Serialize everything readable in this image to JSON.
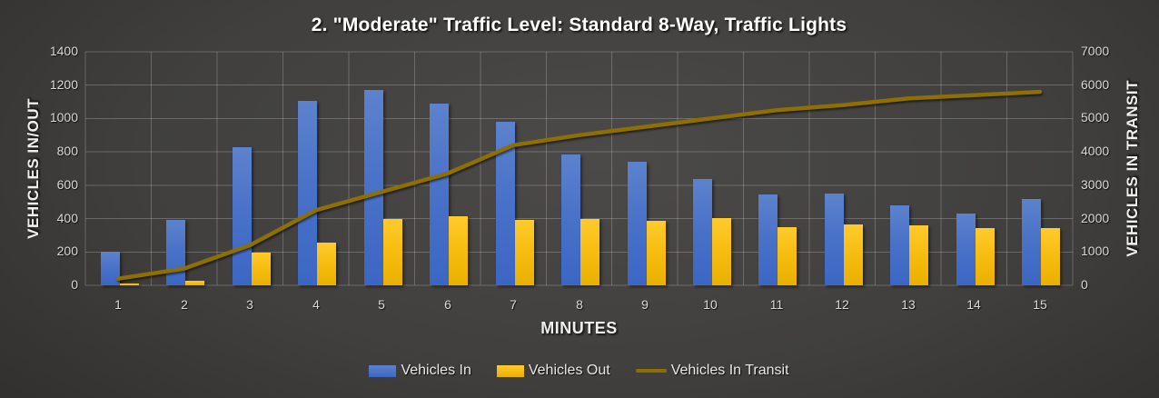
{
  "title": "2. \"Moderate\" Traffic Level: Standard 8-Way, Traffic Lights",
  "colors": {
    "vehicles_in": "#4472c4",
    "vehicles_out": "#ffc000",
    "vehicles_in_transit": "#8d6f03",
    "background": "#3f3e3c",
    "gridline": "#757575",
    "tick_text": "#d9d9d9",
    "title_text": "#ffffff"
  },
  "chart_data": {
    "type": "bar",
    "subtype": "combo bar + line, dual y-axis",
    "title": "2. \"Moderate\" Traffic Level: Standard 8-Way, Traffic Lights",
    "xlabel": "MINUTES",
    "ylabel_left": "VEHICLES IN/OUT",
    "ylabel_right": "VEHICLES IN TRANSIT",
    "categories": [
      1,
      2,
      3,
      4,
      5,
      6,
      7,
      8,
      9,
      10,
      11,
      12,
      13,
      14,
      15
    ],
    "series": [
      {
        "name": "Vehicles In",
        "kind": "bar",
        "axis": "left",
        "values": [
          200,
          395,
          830,
          1105,
          1170,
          1090,
          980,
          785,
          740,
          635,
          545,
          550,
          480,
          430,
          520
        ]
      },
      {
        "name": "Vehicles Out",
        "kind": "bar",
        "axis": "left",
        "values": [
          10,
          30,
          195,
          255,
          400,
          415,
          395,
          400,
          385,
          405,
          350,
          365,
          360,
          345,
          345
        ]
      },
      {
        "name": "Vehicles In Transit",
        "kind": "line",
        "axis": "right",
        "values": [
          200,
          500,
          1200,
          2250,
          2800,
          3350,
          4200,
          4500,
          4750,
          5000,
          5250,
          5400,
          5600,
          5700,
          5800
        ]
      }
    ],
    "ylim_left": [
      0,
      1400
    ],
    "ytick_step_left": 200,
    "ylim_right": [
      0,
      7000
    ],
    "ytick_step_right": 1000,
    "grid": true,
    "legend_position": "bottom",
    "legend_labels": [
      "Vehicles In",
      "Vehicles Out",
      "Vehicles In Transit"
    ]
  }
}
